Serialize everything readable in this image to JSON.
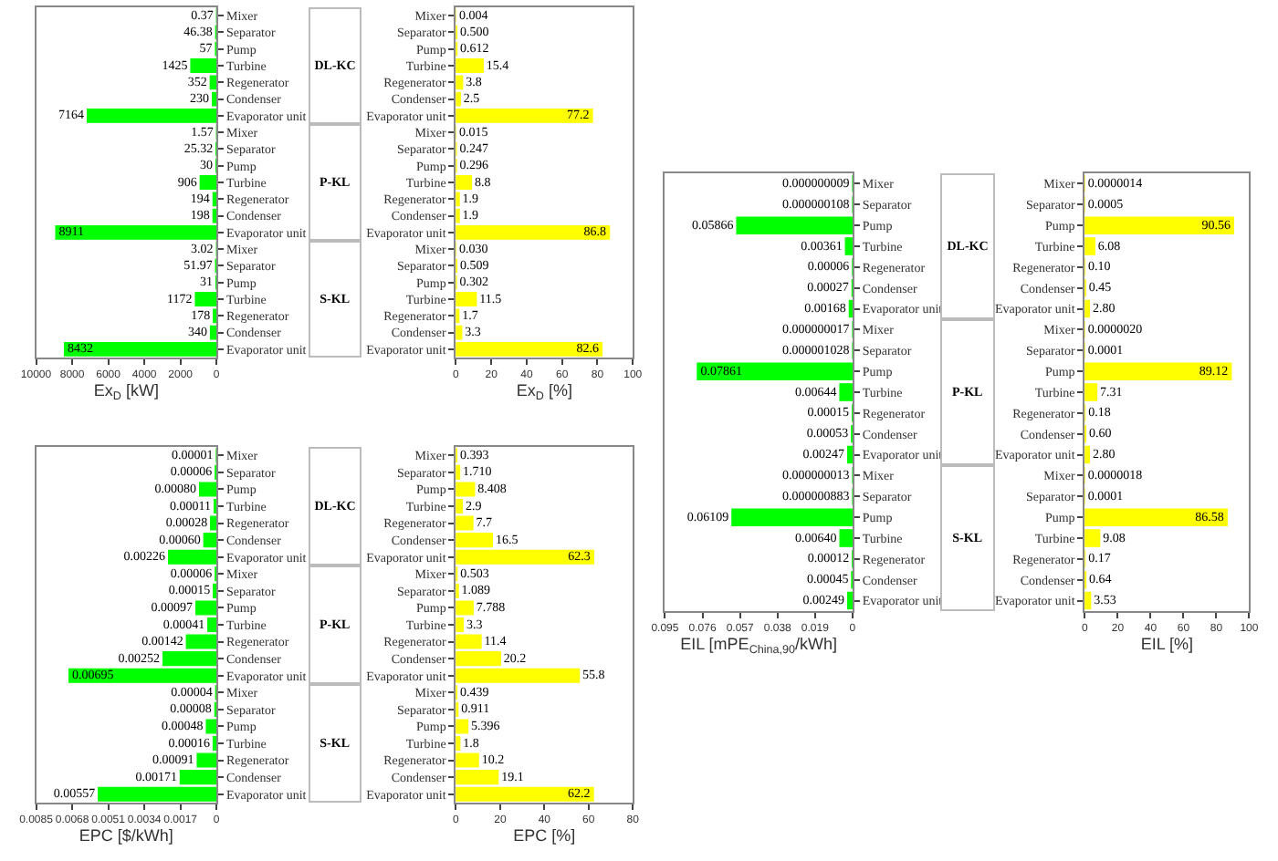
{
  "chart_data": [
    {
      "type": "bar",
      "orientation": "horizontal",
      "xlabel": "Ex$_{D}$ [kW]",
      "xlim": [
        10000,
        0
      ],
      "xticks": [
        10000,
        8000,
        6000,
        4000,
        2000,
        0
      ],
      "color": "#00ff00",
      "categories": [
        "Mixer",
        "Separator",
        "Pump",
        "Turbine",
        "Regenerator",
        "Condenser",
        "Evaporator unit",
        "Mixer",
        "Separator",
        "Pump",
        "Turbine",
        "Regenerator",
        "Condenser",
        "Evaporator unit",
        "Mixer",
        "Separator",
        "Pump",
        "Turbine",
        "Regenerator",
        "Condenser",
        "Evaporator unit"
      ],
      "values": [
        0.37,
        46.38,
        57,
        1425,
        352,
        230,
        7164,
        1.57,
        25.32,
        30,
        906,
        194,
        198,
        8911,
        3.02,
        51.97,
        31,
        1172,
        178,
        340,
        8432
      ],
      "value_labels": [
        "0.37",
        "46.38",
        "57",
        "1425",
        "352",
        "230",
        "7164",
        "1.57",
        "25.32",
        "30",
        "906",
        "194",
        "198",
        "8911",
        "3.02",
        "51.97",
        "31",
        "1172",
        "178",
        "340",
        "8432"
      ],
      "annotations": [
        "DL-KC",
        "P-KL",
        "S-KL"
      ]
    },
    {
      "type": "bar",
      "orientation": "horizontal",
      "xlabel": "Ex$_{D}$ [%]",
      "xlim": [
        0,
        100
      ],
      "xticks": [
        0,
        20,
        40,
        60,
        80,
        100
      ],
      "color": "#ffff00",
      "categories": [
        "Mixer",
        "Separator",
        "Pump",
        "Turbine",
        "Regenerator",
        "Condenser",
        "Evaporator unit",
        "Mixer",
        "Separator",
        "Pump",
        "Turbine",
        "Regenerator",
        "Condenser",
        "Evaporator unit",
        "Mixer",
        "Separator",
        "Pump",
        "Turbine",
        "Regenerator",
        "Condenser",
        "Evaporator unit"
      ],
      "values": [
        0.004,
        0.5,
        0.612,
        15.4,
        3.8,
        2.5,
        77.2,
        0.015,
        0.247,
        0.296,
        8.8,
        1.9,
        1.9,
        86.8,
        0.03,
        0.509,
        0.302,
        11.5,
        1.7,
        3.3,
        82.6
      ],
      "value_labels": [
        "0.004",
        "0.500",
        "0.612",
        "15.4",
        "3.8",
        "2.5",
        "77.2",
        "0.015",
        "0.247",
        "0.296",
        "8.8",
        "1.9",
        "1.9",
        "86.8",
        "0.030",
        "0.509",
        "0.302",
        "11.5",
        "1.7",
        "3.3",
        "82.6"
      ]
    },
    {
      "type": "bar",
      "orientation": "horizontal",
      "xlabel": "EPC [$/kWh]",
      "xlim": [
        0.0085,
        0
      ],
      "xticks": [
        0.0085,
        0.0068,
        0.0051,
        0.0034,
        0.0017,
        0
      ],
      "color": "#00ff00",
      "categories": [
        "Mixer",
        "Separator",
        "Pump",
        "Turbine",
        "Regenerator",
        "Condenser",
        "Evaporator unit",
        "Mixer",
        "Separator",
        "Pump",
        "Turbine",
        "Regenerator",
        "Condenser",
        "Evaporator unit",
        "Mixer",
        "Separator",
        "Pump",
        "Turbine",
        "Regenerator",
        "Condenser",
        "Evaporator unit"
      ],
      "values": [
        1e-05,
        6e-05,
        0.0008,
        0.00011,
        0.00028,
        0.0006,
        0.00226,
        6e-05,
        0.00015,
        0.00097,
        0.00041,
        0.00142,
        0.00252,
        0.00695,
        4e-05,
        8e-05,
        0.00048,
        0.00016,
        0.00091,
        0.00171,
        0.00557
      ],
      "value_labels": [
        "0.00001",
        "0.00006",
        "0.00080",
        "0.00011",
        "0.00028",
        "0.00060",
        "0.00226",
        "0.00006",
        "0.00015",
        "0.00097",
        "0.00041",
        "0.00142",
        "0.00252",
        "0.00695",
        "0.00004",
        "0.00008",
        "0.00048",
        "0.00016",
        "0.00091",
        "0.00171",
        "0.00557"
      ],
      "annotations": [
        "DL-KC",
        "P-KL",
        "S-KL"
      ]
    },
    {
      "type": "bar",
      "orientation": "horizontal",
      "xlabel": "EPC [%]",
      "xlim": [
        0,
        80
      ],
      "xticks": [
        0,
        20,
        40,
        60,
        80
      ],
      "color": "#ffff00",
      "categories": [
        "Mixer",
        "Separator",
        "Pump",
        "Turbine",
        "Regenerator",
        "Condenser",
        "Evaporator unit",
        "Mixer",
        "Separator",
        "Pump",
        "Turbine",
        "Regenerator",
        "Condenser",
        "Evaporator unit",
        "Mixer",
        "Separator",
        "Pump",
        "Turbine",
        "Regenerator",
        "Condenser",
        "Evaporator unit"
      ],
      "values": [
        0.393,
        1.71,
        8.408,
        2.9,
        7.7,
        16.5,
        62.3,
        0.503,
        1.089,
        7.788,
        3.3,
        11.4,
        20.2,
        55.8,
        0.439,
        0.911,
        5.396,
        1.8,
        10.2,
        19.1,
        62.2
      ],
      "value_labels": [
        "0.393",
        "1.710",
        "8.408",
        "2.9",
        "7.7",
        "16.5",
        "62.3",
        "0.503",
        "1.089",
        "7.788",
        "3.3",
        "11.4",
        "20.2",
        "55.8",
        "0.439",
        "0.911",
        "5.396",
        "1.8",
        "10.2",
        "19.1",
        "62.2"
      ]
    },
    {
      "type": "bar",
      "orientation": "horizontal",
      "xlabel": "EIL [mPE$_{China,90}$/kWh]",
      "xlim": [
        0.095,
        0
      ],
      "xticks": [
        0.095,
        0.076,
        0.057,
        0.038,
        0.019,
        0
      ],
      "color": "#00ff00",
      "categories": [
        "Mixer",
        "Separator",
        "Pump",
        "Turbine",
        "Regenerator",
        "Condenser",
        "Evaporator unit",
        "Mixer",
        "Separator",
        "Pump",
        "Turbine",
        "Regenerator",
        "Condenser",
        "Evaporator unit",
        "Mixer",
        "Separator",
        "Pump",
        "Turbine",
        "Regenerator",
        "Condenser",
        "Evaporator unit"
      ],
      "values": [
        9e-09,
        1.08e-07,
        0.05866,
        0.00361,
        6e-05,
        0.00027,
        0.00168,
        1.7e-08,
        1.028e-06,
        0.07861,
        0.00644,
        0.00015,
        0.00053,
        0.00247,
        1.3e-08,
        8.83e-07,
        0.06109,
        0.0064,
        0.00012,
        0.00045,
        0.00249
      ],
      "value_labels": [
        "0.000000009",
        "0.000000108",
        "0.05866",
        "0.00361",
        "0.00006",
        "0.00027",
        "0.00168",
        "0.000000017",
        "0.000001028",
        "0.07861",
        "0.00644",
        "0.00015",
        "0.00053",
        "0.00247",
        "0.000000013",
        "0.000000883",
        "0.06109",
        "0.00640",
        "0.00012",
        "0.00045",
        "0.00249"
      ],
      "annotations": [
        "DL-KC",
        "P-KL",
        "S-KL"
      ]
    },
    {
      "type": "bar",
      "orientation": "horizontal",
      "xlabel": "EIL [%]",
      "xlim": [
        0,
        100
      ],
      "xticks": [
        0,
        20,
        40,
        60,
        80,
        100
      ],
      "color": "#ffff00",
      "categories": [
        "Mixer",
        "Separator",
        "Pump",
        "Turbine",
        "Regenerator",
        "Condenser",
        "Evaporator unit",
        "Mixer",
        "Separator",
        "Pump",
        "Turbine",
        "Regenerator",
        "Condenser",
        "Evaporator unit",
        "Mixer",
        "Separator",
        "Pump",
        "Turbine",
        "Regenerator",
        "Condenser",
        "Evaporator unit"
      ],
      "values": [
        1.4e-06,
        0.0005,
        90.56,
        6.08,
        0.1,
        0.45,
        2.8,
        2e-06,
        0.0001,
        89.12,
        7.31,
        0.18,
        0.6,
        2.8,
        1.8e-06,
        0.0001,
        86.58,
        9.08,
        0.17,
        0.64,
        3.53
      ],
      "value_labels": [
        "0.0000014",
        "0.0005",
        "90.56",
        "6.08",
        "0.10",
        "0.45",
        "2.80",
        "0.0000020",
        "0.0001",
        "89.12",
        "7.31",
        "0.18",
        "0.60",
        "2.80",
        "0.0000018",
        "0.0001",
        "86.58",
        "9.08",
        "0.17",
        "0.64",
        "3.53"
      ]
    }
  ]
}
